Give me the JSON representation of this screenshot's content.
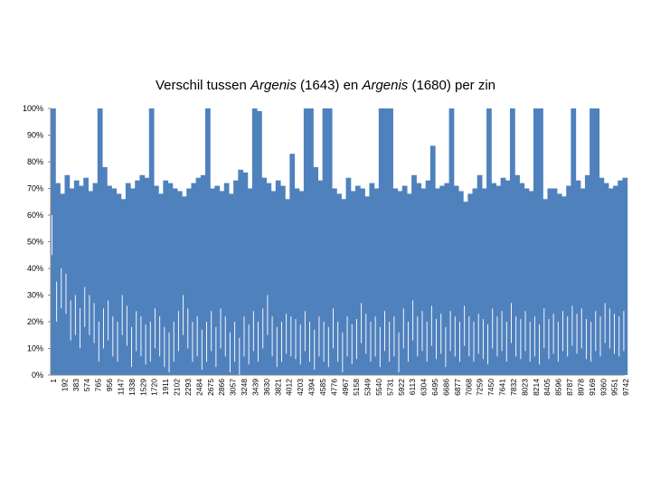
{
  "chart_data": {
    "type": "bar",
    "title_parts": [
      {
        "text": "Verschil tussen ",
        "italic": false
      },
      {
        "text": "Argenis",
        "italic": true
      },
      {
        "text": " (1643) en ",
        "italic": false
      },
      {
        "text": "Argenis",
        "italic": true
      },
      {
        "text": " (1680) per zin",
        "italic": false
      }
    ],
    "ylim": [
      0,
      100
    ],
    "y_ticks": [
      "0%",
      "10%",
      "20%",
      "30%",
      "40%",
      "50%",
      "60%",
      "70%",
      "80%",
      "90%",
      "100%"
    ],
    "x_tick_labels": [
      "1",
      "192",
      "383",
      "574",
      "765",
      "956",
      "1147",
      "1338",
      "1529",
      "1720",
      "1911",
      "2102",
      "2293",
      "2484",
      "2675",
      "2866",
      "3057",
      "3248",
      "3439",
      "3630",
      "3821",
      "4012",
      "4203",
      "4394",
      "4585",
      "4776",
      "4967",
      "5158",
      "5349",
      "5540",
      "5731",
      "5922",
      "6113",
      "6304",
      "6495",
      "6686",
      "6877",
      "7068",
      "7259",
      "7450",
      "7641",
      "7832",
      "8023",
      "8214",
      "8405",
      "8596",
      "8787",
      "8978",
      "9169",
      "9360",
      "9551",
      "9742"
    ],
    "x_range": [
      1,
      9800
    ],
    "bar_color": "#4f81bd",
    "grid": false,
    "series": [
      {
        "x": [
          1,
          80,
          160,
          240,
          320,
          400,
          480,
          560,
          640,
          720,
          800,
          880,
          960,
          1040,
          1120,
          1200,
          1280,
          1360,
          1440,
          1520,
          1600,
          1680,
          1760,
          1840,
          1920,
          2000,
          2080,
          2160,
          2240,
          2320,
          2400,
          2480,
          2560,
          2640,
          2720,
          2800,
          2880,
          2960,
          3040,
          3120,
          3200,
          3280,
          3360,
          3440,
          3520,
          3600,
          3680,
          3760,
          3840,
          3920,
          4000,
          4080,
          4160,
          4240,
          4320,
          4400,
          4480,
          4560,
          4640,
          4720,
          4800,
          4880,
          4960,
          5040,
          5120,
          5200,
          5280,
          5360,
          5440,
          5520,
          5600,
          5680,
          5760,
          5840,
          5920,
          6000,
          6080,
          6160,
          6240,
          6320,
          6400,
          6480,
          6560,
          6640,
          6720,
          6800,
          6880,
          6960,
          7040,
          7120,
          7200,
          7280,
          7360,
          7440,
          7520,
          7600,
          7680,
          7760,
          7840,
          7920,
          8000,
          8080,
          8160,
          8240,
          8320,
          8400,
          8480,
          8560,
          8640,
          8720,
          8800,
          8880,
          8960,
          9040,
          9120,
          9200,
          9280,
          9360,
          9440,
          9520,
          9600,
          9680,
          9760
        ],
        "values": [
          100,
          72,
          68,
          75,
          70,
          73,
          71,
          74,
          69,
          72,
          100,
          78,
          71,
          70,
          68,
          66,
          72,
          70,
          73,
          75,
          74,
          100,
          71,
          68,
          73,
          72,
          70,
          69,
          67,
          70,
          72,
          74,
          75,
          100,
          70,
          71,
          69,
          72,
          68,
          73,
          77,
          76,
          70,
          100,
          99,
          74,
          72,
          69,
          73,
          71,
          66,
          83,
          70,
          69,
          100,
          100,
          78,
          73,
          100,
          100,
          70,
          68,
          66,
          74,
          69,
          71,
          70,
          67,
          72,
          70,
          100,
          100,
          100,
          70,
          69,
          71,
          68,
          75,
          72,
          70,
          73,
          86,
          70,
          71,
          72,
          100,
          71,
          69,
          65,
          68,
          70,
          75,
          70,
          100,
          72,
          71,
          74,
          73,
          100,
          75,
          72,
          70,
          69,
          100,
          100,
          66,
          70,
          70,
          68,
          67,
          71,
          100,
          73,
          70,
          75,
          100,
          100,
          74,
          72,
          70,
          71,
          73,
          74
        ],
        "lows": [
          60,
          35,
          40,
          38,
          28,
          30,
          25,
          33,
          30,
          27,
          20,
          25,
          28,
          22,
          20,
          30,
          26,
          18,
          24,
          22,
          19,
          20,
          25,
          22,
          18,
          16,
          20,
          24,
          30,
          25,
          20,
          22,
          17,
          20,
          24,
          18,
          25,
          22,
          16,
          20,
          14,
          22,
          19,
          24,
          20,
          25,
          30,
          22,
          18,
          20,
          23,
          22,
          21,
          19,
          24,
          20,
          17,
          22,
          20,
          18,
          25,
          20,
          16,
          22,
          19,
          21,
          27,
          23,
          20,
          22,
          18,
          24,
          20,
          22,
          16,
          25,
          20,
          28,
          22,
          24,
          20,
          26,
          21,
          23,
          18,
          24,
          22,
          20,
          26,
          22,
          20,
          23,
          21,
          19,
          25,
          22,
          24,
          20,
          27,
          22,
          21,
          24,
          20,
          22,
          19,
          25,
          21,
          23,
          20,
          24,
          22,
          26,
          23,
          25,
          21,
          20,
          24,
          22,
          27,
          25,
          23,
          22,
          24
        ]
      }
    ]
  }
}
